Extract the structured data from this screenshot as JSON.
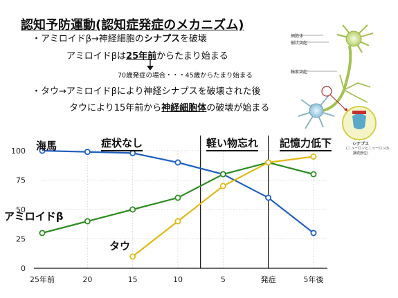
{
  "slide": {
    "title": "認知予防運動(認知症発症のメカニズム)",
    "line1": {
      "pre": "・アミロイドβ→神経細胞の",
      "em": "シナプス",
      "post": "を破壊"
    },
    "line2": {
      "pre": "アミロイドβは",
      "em": "25年前",
      "post": "からたまり始まる"
    },
    "line3": "70歳発症の場合・・・45歳からたまり始まる",
    "line4": "・タウ→アミロイドβにより神経シナプスを破壊された後",
    "line5": {
      "pre": "タウにより15年前から",
      "em": "神経細胞体",
      "post": "の破壊が始まる"
    }
  },
  "neuron": {
    "label_cellbody": "細胞体",
    "label_dendrite": "樹状突起",
    "label_axon": "軸索突起",
    "synapse_title": "シナプス",
    "synapse_sub1": "(ニューロンとニューロンの",
    "synapse_sub2": "接続部位)"
  },
  "chart_data": {
    "type": "line",
    "categories": [
      "25年前",
      "20",
      "15",
      "10",
      "5",
      "発症",
      "5年後"
    ],
    "ylim": [
      0,
      100
    ],
    "yticks": [
      "0",
      "25",
      "50",
      "75",
      "100"
    ],
    "phases": [
      "症状なし",
      "軽い物忘れ",
      "記憶力低下"
    ],
    "series": [
      {
        "name": "海馬",
        "color": "#1f5fbf",
        "x": [
          0,
          1,
          2,
          3,
          4,
          5,
          6
        ],
        "values": [
          100,
          99,
          98,
          90,
          80,
          60,
          30
        ]
      },
      {
        "name": "アミロイドβ",
        "color": "#2e8b22",
        "x": [
          0,
          1,
          2,
          3,
          4,
          5,
          6
        ],
        "values": [
          30,
          40,
          50,
          60,
          80,
          90,
          80
        ]
      },
      {
        "name": "タウ",
        "color": "#e1b815",
        "x": [
          2,
          3,
          4,
          5,
          6
        ],
        "values": [
          10,
          40,
          70,
          90,
          95
        ]
      }
    ]
  }
}
